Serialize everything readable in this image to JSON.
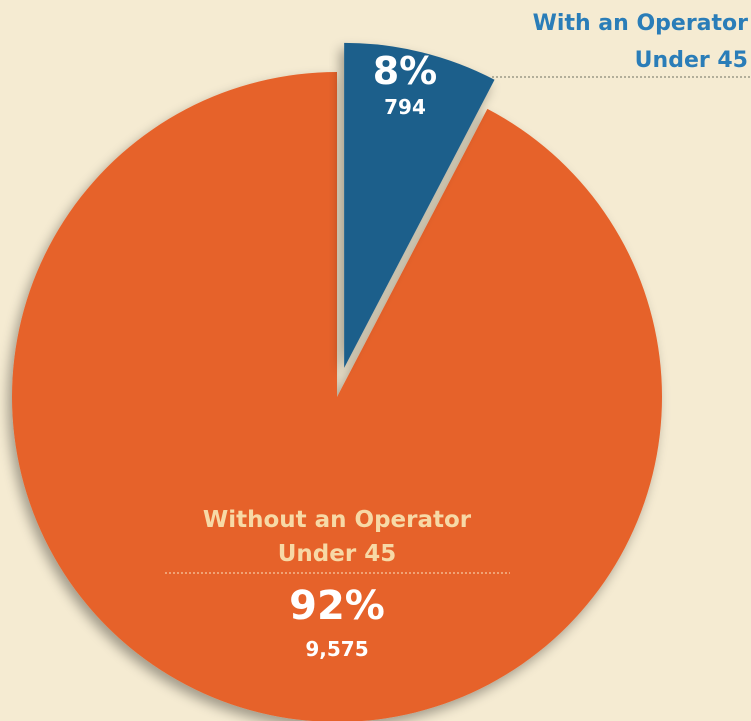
{
  "chart_data": {
    "type": "pie",
    "slices": [
      {
        "label_line1": "With an Operator",
        "label_line2": "Under 45",
        "percent_label": "8%",
        "count_label": "794",
        "value": 794,
        "color": "#1f5f8b",
        "label_color": "#2a7db8"
      },
      {
        "label_line1": "Without an Operator",
        "label_line2": "Under 45",
        "percent_label": "92%",
        "count_label": "9,575",
        "value": 9575,
        "color": "#e6622b",
        "label_color": "#f7d9a6"
      }
    ]
  }
}
